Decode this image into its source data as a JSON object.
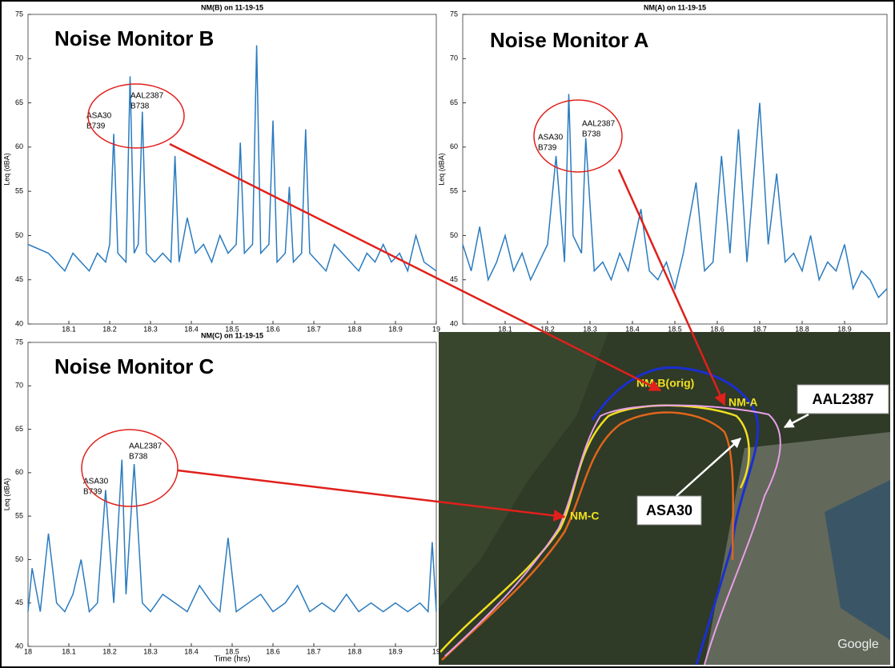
{
  "chart_data": [
    {
      "type": "line",
      "title": "NM(B) on 11-19-15",
      "heading": "Noise Monitor B",
      "ylabel": "Leq (dBA)",
      "xlim": [
        18,
        19
      ],
      "ylim": [
        40,
        75
      ],
      "xticks": [
        18.1,
        18.2,
        18.3,
        18.4,
        18.5,
        18.6,
        18.7,
        18.8,
        18.9,
        19
      ],
      "yticks": [
        40,
        45,
        50,
        55,
        60,
        65,
        70,
        75
      ],
      "annotations": [
        "ASA30",
        "B739",
        "AAL2387",
        "B738"
      ],
      "series": [
        {
          "color": "#2a7bbf",
          "x": [
            18.0,
            18.05,
            18.07,
            18.09,
            18.11,
            18.13,
            18.15,
            18.17,
            18.19,
            18.2,
            18.21,
            18.22,
            18.24,
            18.25,
            18.26,
            18.27,
            18.28,
            18.29,
            18.31,
            18.33,
            18.35,
            18.36,
            18.37,
            18.39,
            18.41,
            18.43,
            18.45,
            18.47,
            18.49,
            18.51,
            18.52,
            18.53,
            18.55,
            18.56,
            18.57,
            18.59,
            18.6,
            18.61,
            18.63,
            18.64,
            18.65,
            18.67,
            18.68,
            18.69,
            18.71,
            18.73,
            18.75,
            18.77,
            18.79,
            18.81,
            18.83,
            18.85,
            18.87,
            18.89,
            18.91,
            18.93,
            18.95,
            18.97,
            19.0
          ],
          "values": [
            49,
            48,
            47,
            46,
            48,
            47,
            46,
            48,
            47,
            49,
            61.5,
            48,
            47,
            68,
            48,
            49,
            64,
            48,
            47,
            48,
            47,
            59,
            47,
            52,
            48,
            49,
            47,
            50,
            48,
            49,
            60.5,
            48,
            49,
            71.5,
            48,
            49,
            63,
            47,
            48,
            55.5,
            47,
            48,
            62,
            48,
            47,
            46,
            49,
            48,
            47,
            46,
            48,
            47,
            49,
            47,
            48,
            46,
            50,
            47,
            46
          ]
        }
      ]
    },
    {
      "type": "line",
      "title": "NM(A) on 11-19-15",
      "heading": "Noise Monitor A",
      "ylabel": "Leq (dBA)",
      "xlim": [
        18,
        19
      ],
      "ylim": [
        40,
        75
      ],
      "xticks": [
        18.1,
        18.2,
        18.3,
        18.4,
        18.5,
        18.6,
        18.7,
        18.8,
        18.9
      ],
      "yticks": [
        40,
        45,
        50,
        55,
        60,
        65,
        70,
        75
      ],
      "annotations": [
        "ASA30",
        "B739",
        "AAL2387",
        "B738"
      ],
      "series": [
        {
          "color": "#2a7bbf",
          "x": [
            18.0,
            18.02,
            18.04,
            18.06,
            18.08,
            18.1,
            18.12,
            18.14,
            18.16,
            18.18,
            18.2,
            18.22,
            18.24,
            18.25,
            18.26,
            18.28,
            18.29,
            18.31,
            18.33,
            18.35,
            18.37,
            18.39,
            18.42,
            18.44,
            18.46,
            18.48,
            18.5,
            18.52,
            18.55,
            18.57,
            18.59,
            18.61,
            18.63,
            18.65,
            18.67,
            18.7,
            18.72,
            18.74,
            18.76,
            18.78,
            18.8,
            18.82,
            18.84,
            18.86,
            18.88,
            18.9,
            18.92,
            18.94,
            18.96,
            18.98,
            19.0
          ],
          "values": [
            49,
            46,
            51,
            45,
            47,
            50,
            46,
            48,
            45,
            47,
            49,
            59,
            47,
            66,
            50,
            48,
            61,
            46,
            47,
            45,
            48,
            46,
            53,
            46,
            45,
            47,
            44,
            48,
            56,
            46,
            47,
            59,
            48,
            62,
            47,
            65,
            49,
            57,
            47,
            48,
            46,
            50,
            45,
            47,
            46,
            49,
            44,
            46,
            45,
            43,
            44
          ]
        }
      ]
    },
    {
      "type": "line",
      "title": "NM(C) on 11-19-15",
      "heading": "Noise Monitor C",
      "ylabel": "Leq (dBA)",
      "xlabel": "Time (hrs)",
      "xlim": [
        18,
        19
      ],
      "ylim": [
        40,
        75
      ],
      "xticks": [
        18,
        18.1,
        18.2,
        18.3,
        18.4,
        18.5,
        18.6,
        18.7,
        18.8,
        18.9,
        19
      ],
      "yticks": [
        40,
        45,
        50,
        55,
        60,
        65,
        70,
        75
      ],
      "annotations": [
        "ASA30",
        "B739",
        "AAL2387",
        "B738"
      ],
      "series": [
        {
          "color": "#2a7bbf",
          "x": [
            18.0,
            18.01,
            18.03,
            18.05,
            18.07,
            18.09,
            18.11,
            18.13,
            18.15,
            18.17,
            18.19,
            18.21,
            18.23,
            18.24,
            18.26,
            18.28,
            18.3,
            18.33,
            18.36,
            18.39,
            18.42,
            18.45,
            18.47,
            18.49,
            18.51,
            18.54,
            18.57,
            18.6,
            18.63,
            18.66,
            18.69,
            18.72,
            18.75,
            18.78,
            18.81,
            18.84,
            18.87,
            18.9,
            18.93,
            18.96,
            18.98,
            18.99,
            19.0
          ],
          "values": [
            44,
            49,
            44,
            53,
            45,
            44,
            46,
            50,
            44,
            45,
            58,
            45,
            61.5,
            46,
            61,
            45,
            44,
            46,
            45,
            44,
            47,
            45,
            44,
            52.5,
            44,
            45,
            46,
            44,
            45,
            47,
            44,
            45,
            44,
            46,
            44,
            45,
            44,
            45,
            44,
            45,
            44,
            52,
            44
          ]
        }
      ]
    }
  ],
  "map": {
    "labels": [
      "NM-B(orig)",
      "NM-A",
      "NM-C"
    ],
    "callouts": [
      "AAL2387",
      "ASA30"
    ],
    "credit": "Google"
  }
}
